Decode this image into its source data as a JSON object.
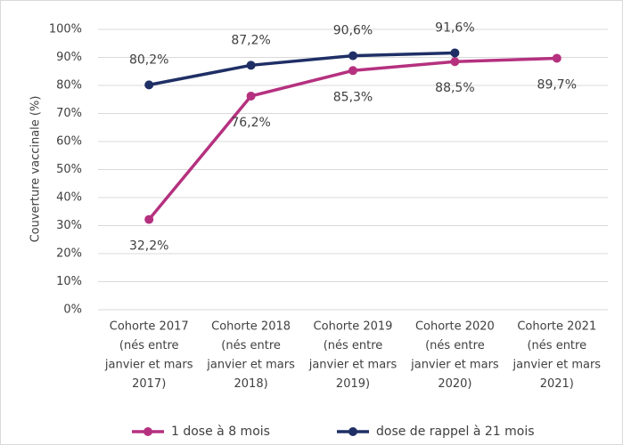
{
  "chart_data": {
    "type": "line",
    "y_label": "Couverture vaccinale (%)",
    "categories": [
      [
        "Cohorte 2017",
        "(nés entre",
        "janvier et mars",
        "2017)"
      ],
      [
        "Cohorte 2018",
        "(nés entre",
        "janvier et mars",
        "2018)"
      ],
      [
        "Cohorte 2019",
        "(nés entre",
        "janvier et mars",
        "2019)"
      ],
      [
        "Cohorte 2020",
        "(nés entre",
        "janvier et mars",
        "2020)"
      ],
      [
        "Cohorte 2021",
        "(nés entre",
        "janvier et mars",
        "2021)"
      ]
    ],
    "series": [
      {
        "name": "1 dose à 8 mois",
        "color": "#b5317f",
        "values": [
          32.2,
          76.2,
          85.3,
          88.5,
          89.7
        ],
        "value_labels": [
          "32,2%",
          "76,2%",
          "85,3%",
          "88,5%",
          "89,7%"
        ]
      },
      {
        "name": "dose de rappel à 21 mois",
        "color": "#1f2f66",
        "values": [
          80.2,
          87.2,
          90.6,
          91.6,
          null
        ],
        "value_labels": [
          "80,2%",
          "87,2%",
          "90,6%",
          "91,6%",
          null
        ]
      }
    ],
    "ylim": [
      0,
      100
    ],
    "yticks": [
      {
        "value": 0,
        "label": "0%"
      },
      {
        "value": 10,
        "label": "10%"
      },
      {
        "value": 20,
        "label": "20%"
      },
      {
        "value": 30,
        "label": "30%"
      },
      {
        "value": 40,
        "label": "40%"
      },
      {
        "value": 50,
        "label": "50%"
      },
      {
        "value": 60,
        "label": "60%"
      },
      {
        "value": 70,
        "label": "70%"
      },
      {
        "value": 80,
        "label": "80%"
      },
      {
        "value": 90,
        "label": "90%"
      },
      {
        "value": 100,
        "label": "100%"
      }
    ],
    "grid": true,
    "legend": "bottom"
  }
}
